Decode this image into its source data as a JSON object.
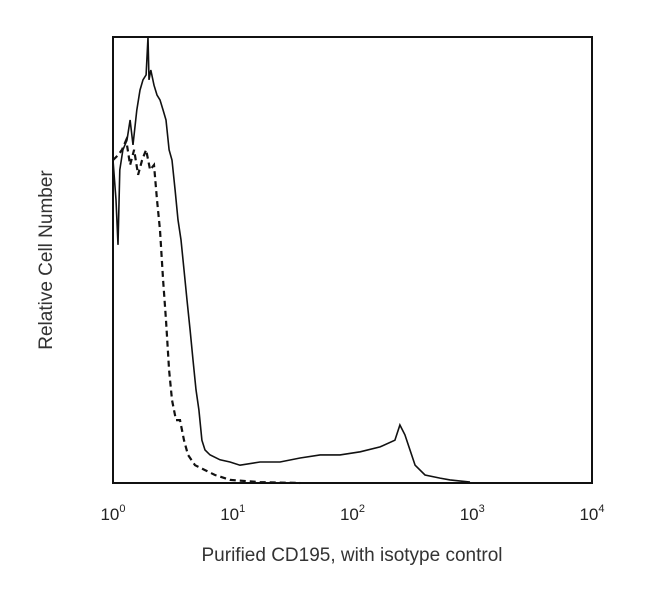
{
  "chart_data": {
    "type": "line",
    "title": "",
    "xlabel": "Purified CD195, with isotype control",
    "ylabel": "Relative Cell Number",
    "x_scale": "log",
    "xlim": [
      1,
      10000
    ],
    "ylim": [
      0,
      100
    ],
    "x_ticks": [
      {
        "base": "10",
        "exp": "0"
      },
      {
        "base": "10",
        "exp": "1"
      },
      {
        "base": "10",
        "exp": "2"
      },
      {
        "base": "10",
        "exp": "3"
      },
      {
        "base": "10",
        "exp": "4"
      }
    ],
    "grid": false,
    "legend": "none",
    "series": [
      {
        "style": "solid",
        "color": "#111111",
        "x": [
          1,
          1.06,
          1.1,
          1.14,
          1.21,
          1.31,
          1.39,
          1.47,
          1.58,
          1.68,
          1.78,
          1.89,
          1.96,
          2.0,
          2.07,
          2.2,
          2.33,
          2.47,
          2.62,
          2.77,
          2.94,
          3.11,
          3.3,
          3.49,
          3.7,
          3.92,
          4.15,
          4.4,
          4.66,
          4.93,
          5.22,
          5.53,
          5.86,
          6.46,
          7.83,
          9.48,
          11.5,
          16.9,
          24.8,
          36.5,
          53.6,
          78.7,
          116,
          170,
          226,
          249,
          274,
          302,
          333,
          403,
          538,
          652,
          957
        ],
        "y": [
          72.4,
          63.5,
          53.4,
          70.2,
          74.7,
          76.9,
          81.4,
          75.8,
          83.6,
          88.1,
          90.4,
          91.5,
          100,
          90.4,
          92.6,
          89.2,
          87.0,
          85.9,
          83.6,
          81.4,
          74.7,
          72.4,
          65.7,
          59.0,
          54.5,
          47.8,
          41.0,
          34.3,
          27.6,
          20.9,
          16.4,
          9.6,
          7.4,
          6.3,
          5.2,
          4.7,
          4.0,
          4.7,
          4.7,
          5.6,
          6.3,
          6.3,
          7.0,
          8.1,
          9.6,
          13.0,
          10.8,
          7.4,
          4.0,
          1.8,
          1.1,
          0.7,
          0.2
        ]
      },
      {
        "style": "dashed",
        "color": "#111111",
        "x": [
          1,
          1.1,
          1.19,
          1.29,
          1.39,
          1.5,
          1.62,
          1.75,
          1.89,
          2.04,
          2.2,
          2.33,
          2.47,
          2.62,
          2.77,
          2.94,
          3.11,
          3.36,
          3.63,
          3.92,
          4.23,
          4.84,
          5.86,
          7.11,
          9.48,
          16.9,
          36.5
        ],
        "y": [
          72.4,
          73.5,
          74.7,
          76.9,
          71.3,
          74.7,
          69.1,
          72.4,
          74.7,
          70.2,
          71.3,
          63.5,
          56.7,
          45.5,
          36.5,
          25.3,
          18.6,
          14.1,
          14.1,
          9.6,
          6.3,
          4.0,
          2.9,
          1.8,
          0.7,
          0.2,
          0
        ]
      }
    ]
  }
}
